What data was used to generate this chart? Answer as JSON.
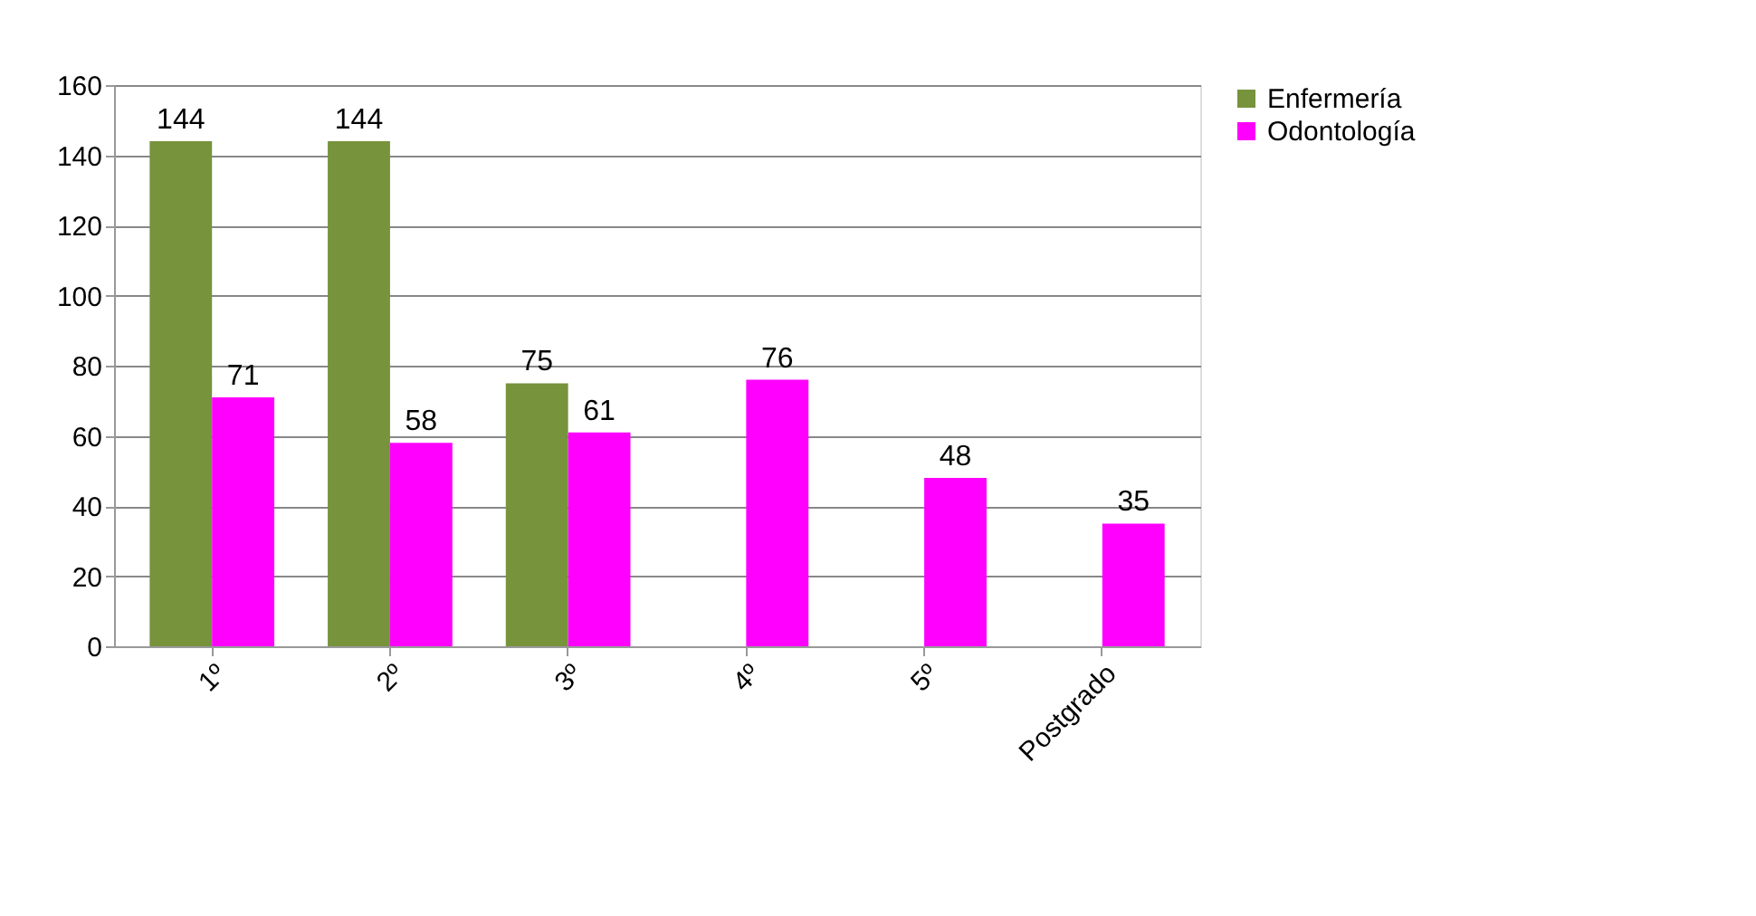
{
  "chart_data": {
    "type": "bar",
    "categories": [
      "1º",
      "2º",
      "3º",
      "4º",
      "5º",
      "Postgrado"
    ],
    "series": [
      {
        "name": "Enfermería",
        "color": "#77933c",
        "values": [
          144,
          144,
          75,
          null,
          null,
          null
        ]
      },
      {
        "name": "Odontología",
        "color": "#ff00ff",
        "values": [
          71,
          58,
          61,
          76,
          48,
          35
        ]
      }
    ],
    "ylim": [
      0,
      160
    ],
    "yticks": [
      0,
      20,
      40,
      60,
      80,
      100,
      120,
      140,
      160
    ],
    "grid": "y",
    "legend": "right",
    "data_labels": true
  }
}
